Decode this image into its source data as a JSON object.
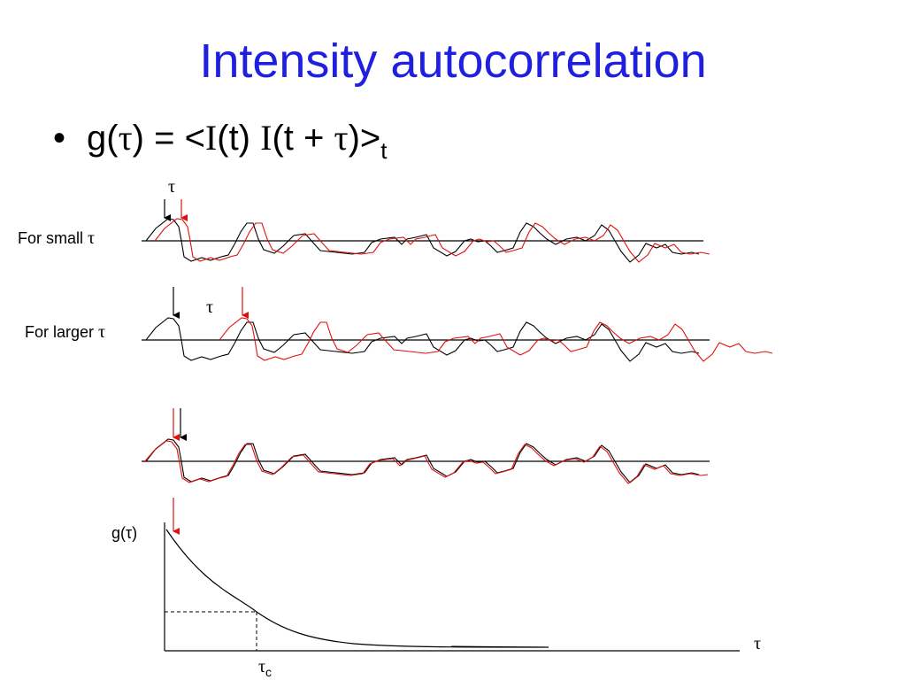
{
  "slide": {
    "title": "Intensity autocorrelation",
    "bullet": {
      "g": "g(",
      "tau1": "τ",
      "mid1": ") = <",
      "I1": "I",
      "mid2": "(t) ",
      "I2": "I",
      "mid3": "(t + ",
      "tau2": "τ",
      "mid4": ")>",
      "sub": "t"
    }
  },
  "rows": [
    {
      "label": "For small ",
      "symbol": "τ",
      "shift_label": "τ"
    },
    {
      "label": "For larger ",
      "symbol": "τ",
      "shift_label": "τ"
    },
    {
      "label": "",
      "symbol": "",
      "shift_label": ""
    }
  ],
  "plot": {
    "ylabel": "g(τ)",
    "xlabel": "τ",
    "marker_label": "τ",
    "marker_sub": "c"
  },
  "colors": {
    "title": "#1f1fe0",
    "original_signal": "#000000",
    "shifted_signal": "#e01010",
    "axis": "#000000"
  }
}
